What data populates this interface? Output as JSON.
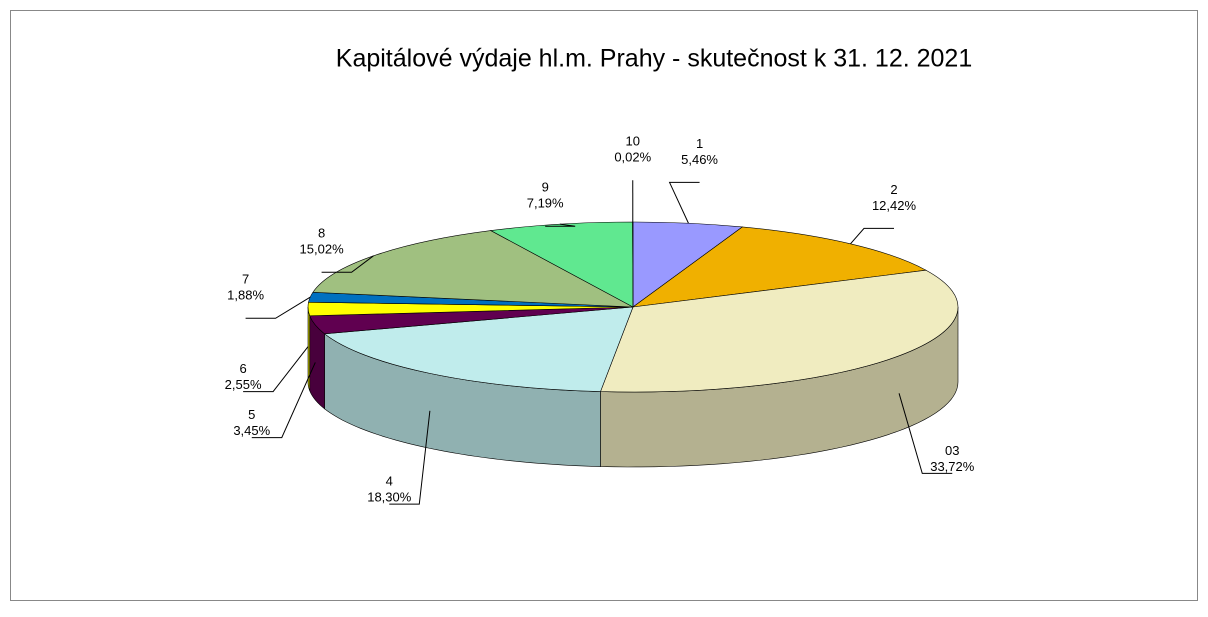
{
  "chart_data": {
    "type": "pie",
    "title": "Kapitálové výdaje hl.m. Prahy - skutečnost k 31. 12. 2021",
    "categories": [
      "1",
      "2",
      "03",
      "4",
      "5",
      "6",
      "7",
      "8",
      "9",
      "10"
    ],
    "values": [
      5.46,
      12.42,
      33.72,
      18.3,
      3.45,
      2.55,
      1.88,
      15.02,
      7.19,
      0.02
    ],
    "value_labels": [
      "5,46%",
      "12,42%",
      "33,72%",
      "18,30%",
      "3,45%",
      "2,55%",
      "1,88%",
      "15,02%",
      "7,19%",
      "0,02%"
    ],
    "colors": [
      "#9999ff",
      "#f0b000",
      "#f0ecc0",
      "#c0ecec",
      "#600050",
      "#ffff00",
      "#0070c0",
      "#a0c080",
      "#60e890",
      "#993366"
    ]
  }
}
